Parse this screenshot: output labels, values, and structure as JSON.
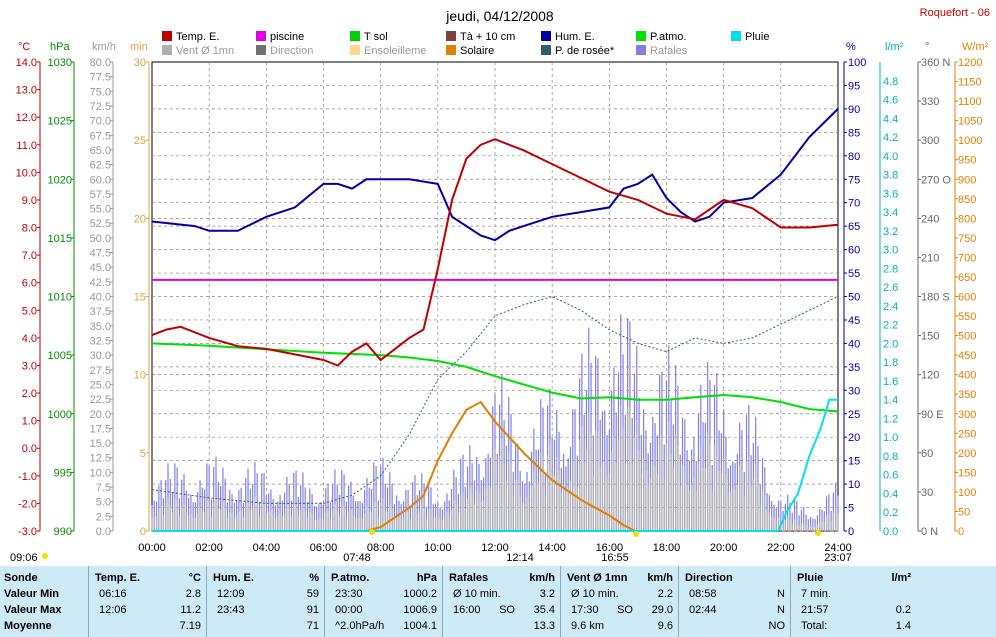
{
  "title": "jeudi, 04/12/2008",
  "station": "Roquefort - 06",
  "legend": [
    {
      "label": "Temp. E.",
      "color": "#c00000"
    },
    {
      "label": "piscine",
      "color": "#e000e0"
    },
    {
      "label": "T sol",
      "color": "#00d000"
    },
    {
      "label": "Tà + 10 cm",
      "color": "#804040"
    },
    {
      "label": "Hum. E.",
      "color": "#0000a0"
    },
    {
      "label": "P.atmo.",
      "color": "#00e000"
    },
    {
      "label": "Pluie",
      "color": "#00e0f0"
    },
    {
      "label": "Vent Ø 1mn",
      "color": "#b0b0b0"
    },
    {
      "label": "Direction",
      "color": "#707070"
    },
    {
      "label": "Ensoleilleme",
      "color": "#ffd890"
    },
    {
      "label": "Solaire",
      "color": "#e08000"
    },
    {
      "label": "P. de rosée*",
      "color": "#306060"
    },
    {
      "label": "Rafales",
      "color": "#8080e0"
    }
  ],
  "axis_units": {
    "temp": "°C",
    "pressure": "hPa",
    "wind": "km/h",
    "sun": "min",
    "hum": "%",
    "rain": "l/m²",
    "dir": "°",
    "solar": "W/m²"
  },
  "axis_ticks": {
    "temp": [
      "14.0",
      "13.0",
      "12.0",
      "11.0",
      "10.0",
      "9.0",
      "8.0",
      "7.0",
      "6.0",
      "5.0",
      "4.0",
      "3.0",
      "2.0",
      "1.0",
      "0.0",
      "-1.0",
      "-2.0",
      "-3.0"
    ],
    "pressure": [
      "1030",
      "1025",
      "1020",
      "1015",
      "1010",
      "1005",
      "1000",
      "995",
      "990"
    ],
    "wind": [
      "80.0",
      "77.5",
      "75.0",
      "72.5",
      "70.0",
      "67.5",
      "65.0",
      "62.5",
      "60.0",
      "57.5",
      "55.0",
      "52.5",
      "50.0",
      "47.5",
      "45.0",
      "42.5",
      "40.0",
      "37.5",
      "35.0",
      "32.5",
      "30.0",
      "27.5",
      "25.0",
      "22.5",
      "20.0",
      "17.5",
      "15.0",
      "12.5",
      "10.0",
      "7.5",
      "5.0",
      "2.5",
      "0.0"
    ],
    "sun": [
      "30",
      "25",
      "20",
      "15",
      "10",
      "5",
      "0"
    ],
    "hum": [
      "100",
      "95",
      "90",
      "85",
      "80",
      "75",
      "70",
      "65",
      "60",
      "55",
      "50",
      "45",
      "40",
      "35",
      "30",
      "25",
      "20",
      "15",
      "10",
      "5",
      "0"
    ],
    "rain": [
      "4.8",
      "4.6",
      "4.4",
      "4.2",
      "4.0",
      "3.8",
      "3.6",
      "3.4",
      "3.2",
      "3.0",
      "2.8",
      "2.6",
      "2.4",
      "2.2",
      "2.0",
      "1.8",
      "1.6",
      "1.4",
      "1.2",
      "1.0",
      "0.8",
      "0.6",
      "0.4",
      "0.2",
      "0.0"
    ],
    "dir": [
      "360 N",
      "330",
      "300",
      "270 O",
      "240",
      "210",
      "180 S",
      "150",
      "120",
      "90 E",
      "60",
      "30",
      "0 N"
    ],
    "solar": [
      "1200",
      "1150",
      "1100",
      "1050",
      "1000",
      "950",
      "900",
      "850",
      "800",
      "750",
      "700",
      "650",
      "600",
      "550",
      "500",
      "450",
      "400",
      "350",
      "300",
      "250",
      "200",
      "150",
      "100",
      "50",
      "0"
    ],
    "time": [
      "00:00",
      "02:00",
      "04:00",
      "06:00",
      "08:00",
      "10:00",
      "12:00",
      "14:00",
      "16:00",
      "18:00",
      "20:00",
      "22:00",
      "24:00"
    ]
  },
  "sun_marks": {
    "sunrise": "07:48",
    "noon": "12:14",
    "sunset": "16:55",
    "left": "09:06",
    "right": "23:07"
  },
  "chart_data": {
    "type": "line",
    "title": "jeudi, 04/12/2008",
    "x_range": [
      0,
      24
    ],
    "series": [
      {
        "name": "Temp. E.",
        "axis": "temp",
        "color": "#c00000",
        "x": [
          0,
          0.5,
          1,
          2,
          3,
          4,
          5,
          6,
          6.5,
          7,
          7.5,
          8,
          8.5,
          9,
          9.5,
          10,
          10.5,
          11,
          11.5,
          12,
          12.5,
          13,
          14,
          15,
          16,
          17,
          18,
          19,
          20,
          21,
          22,
          23,
          24
        ],
        "y": [
          4.1,
          4.3,
          4.4,
          4.0,
          3.7,
          3.6,
          3.4,
          3.2,
          3.0,
          3.5,
          3.8,
          3.2,
          3.6,
          4.0,
          4.3,
          6.5,
          9.0,
          10.5,
          11.0,
          11.2,
          11.0,
          10.8,
          10.3,
          9.8,
          9.3,
          9.0,
          8.5,
          8.3,
          9.0,
          8.7,
          8.0,
          8.0,
          8.1
        ]
      },
      {
        "name": "piscine",
        "axis": "temp",
        "color": "#e000e0",
        "x": [
          0,
          24
        ],
        "y": [
          6.1,
          6.1
        ]
      },
      {
        "name": "Hum. E.",
        "axis": "hum",
        "color": "#0000a0",
        "x": [
          0,
          1.5,
          2,
          3,
          4,
          5,
          6,
          6.5,
          7,
          7.5,
          8,
          9,
          10,
          10.5,
          11,
          11.5,
          12,
          12.5,
          13,
          14,
          15,
          16,
          16.5,
          17,
          17.5,
          18,
          18.5,
          19,
          19.5,
          20,
          21,
          22,
          23,
          24
        ],
        "y": [
          66,
          65,
          64,
          64,
          67,
          69,
          74,
          74,
          73,
          75,
          75,
          75,
          74,
          67,
          65,
          63,
          62,
          64,
          65,
          67,
          68,
          69,
          73,
          74,
          76,
          71,
          68,
          66,
          67,
          70,
          71,
          76,
          84,
          90
        ]
      },
      {
        "name": "P.atmo.",
        "axis": "pressure",
        "color": "#00e000",
        "x": [
          0,
          2,
          4,
          6,
          8,
          9,
          10,
          11,
          12,
          13,
          14,
          15,
          16,
          17,
          18,
          19,
          20,
          21,
          22,
          23,
          24
        ],
        "y": [
          1006.0,
          1005.8,
          1005.5,
          1005.2,
          1005.0,
          1004.8,
          1004.5,
          1004.0,
          1003.2,
          1002.5,
          1001.8,
          1001.3,
          1001.4,
          1001.2,
          1001.2,
          1001.4,
          1001.6,
          1001.4,
          1001.0,
          1000.4,
          1000.2
        ]
      },
      {
        "name": "P. de rosée*",
        "axis": "temp",
        "color": "#306060",
        "x": [
          0,
          2,
          4,
          6,
          7,
          8,
          9,
          10,
          11,
          12,
          13,
          14,
          15,
          16,
          17,
          18,
          19,
          20,
          21,
          22,
          23,
          24
        ],
        "y": [
          -1.5,
          -1.8,
          -2.0,
          -2.0,
          -1.7,
          -1.0,
          0.5,
          2.5,
          3.5,
          4.8,
          5.2,
          5.5,
          5.0,
          4.3,
          3.8,
          3.5,
          4.0,
          3.8,
          4.0,
          4.5,
          5.0,
          5.5
        ]
      },
      {
        "name": "Solaire",
        "axis": "solar",
        "color": "#e08000",
        "x": [
          7.5,
          8,
          9,
          9.5,
          10,
          10.5,
          11,
          11.5,
          12,
          12.5,
          13,
          14,
          15,
          15.5,
          16,
          16.5,
          16.9
        ],
        "y": [
          0,
          10,
          60,
          90,
          180,
          250,
          310,
          330,
          280,
          240,
          200,
          130,
          80,
          60,
          40,
          15,
          0
        ]
      },
      {
        "name": "Pluie",
        "axis": "rain",
        "color": "#00e0f0",
        "x": [
          0,
          21.9,
          22.2,
          22.6,
          23,
          23.4,
          23.7,
          24
        ],
        "y": [
          0,
          0,
          0.2,
          0.4,
          0.8,
          1.1,
          1.4,
          1.4
        ]
      },
      {
        "name": "Rafales",
        "axis": "wind",
        "color": "#8080e0",
        "x": [
          0,
          2,
          4,
          6,
          8,
          10,
          11,
          12,
          13,
          14,
          15,
          16,
          17,
          18,
          19,
          20,
          21,
          22,
          23,
          24
        ],
        "y": [
          8,
          9,
          8,
          7,
          9,
          6,
          10,
          20,
          14,
          18,
          22,
          30,
          25,
          22,
          21,
          20,
          15,
          5,
          3,
          6
        ]
      },
      {
        "name": "Vent Ø 1mn",
        "axis": "wind",
        "color": "#b0b0b0",
        "x": [
          0,
          2,
          4,
          6,
          8,
          10,
          11,
          12,
          13,
          14,
          15,
          16,
          17,
          18,
          19,
          20,
          21,
          22,
          23,
          24
        ],
        "y": [
          4,
          4,
          4,
          3,
          4,
          3,
          5,
          12,
          8,
          11,
          13,
          17,
          15,
          13,
          12,
          12,
          9,
          2,
          1,
          3
        ]
      }
    ]
  },
  "stats": {
    "sonde": {
      "title": "Sonde",
      "rows": [
        "Valeur Min",
        "Valeur Max",
        "Moyenne"
      ]
    },
    "temp": {
      "title": "Temp. E.",
      "unit": "°C",
      "rows": [
        [
          "06:16",
          "",
          "2.8"
        ],
        [
          "12:06",
          "",
          "11.2"
        ],
        [
          "",
          "",
          "7.19"
        ]
      ]
    },
    "hum": {
      "title": "Hum. E.",
      "unit": "%",
      "rows": [
        [
          "12:09",
          "",
          "59"
        ],
        [
          "23:43",
          "",
          "91"
        ],
        [
          "",
          "",
          "71"
        ]
      ]
    },
    "patmo": {
      "title": "P.atmo.",
      "unit": "hPa",
      "rows": [
        [
          "23:30",
          "",
          "1000.2"
        ],
        [
          "00:00",
          "",
          "1006.9"
        ],
        [
          "^2.0hPa/h",
          "",
          "1004.1"
        ]
      ]
    },
    "rafales": {
      "title": "Rafales",
      "unit": "km/h",
      "rows": [
        [
          "Ø 10 min.",
          "",
          "3.2"
        ],
        [
          "16:00",
          "SO",
          "35.4"
        ],
        [
          "",
          "",
          "13.3"
        ]
      ]
    },
    "vent": {
      "title": "Vent Ø 1mn",
      "unit": "km/h",
      "rows": [
        [
          "Ø 10 min.",
          "",
          "2.2"
        ],
        [
          "17:30",
          "SO",
          "29.0"
        ],
        [
          "9.6 km",
          "",
          "9.6"
        ]
      ]
    },
    "direction": {
      "title": "Direction",
      "unit": "",
      "rows": [
        [
          "08:58",
          "",
          "N"
        ],
        [
          "02:44",
          "",
          "N"
        ],
        [
          "",
          "",
          "NO"
        ]
      ]
    },
    "pluie": {
      "title": "Pluie",
      "unit": "l/m²",
      "rows": [
        [
          "7 min.",
          "",
          ""
        ],
        [
          "21:57",
          "",
          "0.2"
        ],
        [
          "Total:",
          "",
          "1.4"
        ]
      ]
    }
  }
}
